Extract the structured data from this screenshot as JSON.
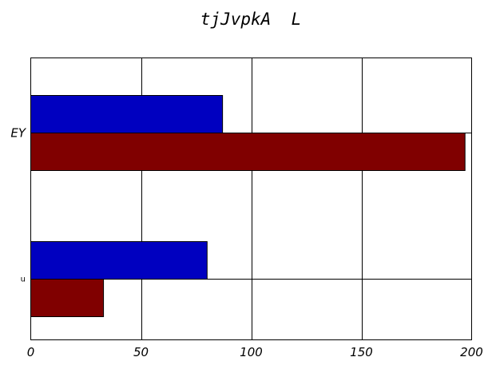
{
  "chart_data": {
    "type": "bar",
    "orientation": "horizontal",
    "title": "tjJvpkA  L",
    "xlabel": "",
    "ylabel": "",
    "categories": [
      "EY",
      "u"
    ],
    "series": [
      {
        "color": "#0000c0",
        "values": [
          87,
          80
        ]
      },
      {
        "color": "#800000",
        "values": [
          197,
          33
        ]
      }
    ],
    "xlim": [
      0,
      200
    ],
    "xticks": [
      0,
      50,
      100,
      150,
      200
    ],
    "grid": true,
    "legend": "none"
  }
}
